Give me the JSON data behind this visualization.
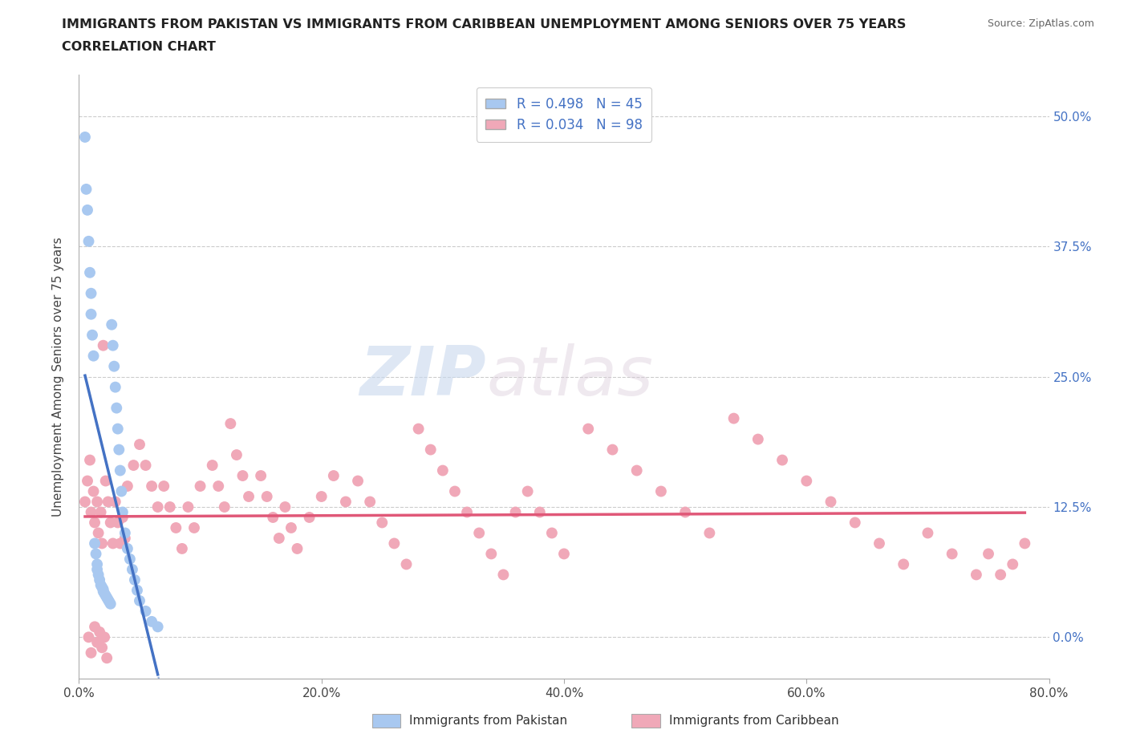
{
  "title_line1": "IMMIGRANTS FROM PAKISTAN VS IMMIGRANTS FROM CARIBBEAN UNEMPLOYMENT AMONG SENIORS OVER 75 YEARS",
  "title_line2": "CORRELATION CHART",
  "source": "Source: ZipAtlas.com",
  "ylabel": "Unemployment Among Seniors over 75 years",
  "xlim": [
    0.0,
    0.8
  ],
  "ylim": [
    -0.04,
    0.54
  ],
  "yticks": [
    0.0,
    0.125,
    0.25,
    0.375,
    0.5
  ],
  "ytick_labels_right": [
    "0.0%",
    "12.5%",
    "25.0%",
    "37.5%",
    "50.0%"
  ],
  "xticks": [
    0.0,
    0.2,
    0.4,
    0.6,
    0.8
  ],
  "xtick_labels": [
    "0.0%",
    "20.0%",
    "40.0%",
    "60.0%",
    "80.0%"
  ],
  "pakistan_color": "#a8c8f0",
  "caribbean_color": "#f0a8b8",
  "pakistan_line_color": "#4472c4",
  "caribbean_line_color": "#e05878",
  "pakistan_R": 0.498,
  "pakistan_N": 45,
  "caribbean_R": 0.034,
  "caribbean_N": 98,
  "legend_R_color": "#4472c4",
  "watermark_zip": "ZIP",
  "watermark_atlas": "atlas",
  "grid_color": "#cccccc",
  "pak_x": [
    0.005,
    0.006,
    0.007,
    0.008,
    0.009,
    0.01,
    0.01,
    0.011,
    0.012,
    0.013,
    0.014,
    0.015,
    0.015,
    0.016,
    0.017,
    0.018,
    0.019,
    0.02,
    0.02,
    0.021,
    0.022,
    0.023,
    0.024,
    0.025,
    0.026,
    0.027,
    0.028,
    0.029,
    0.03,
    0.031,
    0.032,
    0.033,
    0.034,
    0.035,
    0.036,
    0.038,
    0.04,
    0.042,
    0.044,
    0.046,
    0.048,
    0.05,
    0.055,
    0.06,
    0.065
  ],
  "pak_y": [
    0.48,
    0.43,
    0.41,
    0.38,
    0.35,
    0.33,
    0.31,
    0.29,
    0.27,
    0.09,
    0.08,
    0.07,
    0.065,
    0.06,
    0.055,
    0.05,
    0.048,
    0.046,
    0.044,
    0.042,
    0.04,
    0.038,
    0.036,
    0.034,
    0.032,
    0.3,
    0.28,
    0.26,
    0.24,
    0.22,
    0.2,
    0.18,
    0.16,
    0.14,
    0.12,
    0.1,
    0.085,
    0.075,
    0.065,
    0.055,
    0.045,
    0.035,
    0.025,
    0.015,
    0.01
  ],
  "car_x": [
    0.005,
    0.007,
    0.009,
    0.01,
    0.012,
    0.013,
    0.015,
    0.016,
    0.018,
    0.019,
    0.02,
    0.022,
    0.024,
    0.026,
    0.028,
    0.03,
    0.032,
    0.034,
    0.036,
    0.038,
    0.04,
    0.045,
    0.05,
    0.055,
    0.06,
    0.065,
    0.07,
    0.075,
    0.08,
    0.085,
    0.09,
    0.095,
    0.1,
    0.11,
    0.115,
    0.12,
    0.125,
    0.13,
    0.135,
    0.14,
    0.15,
    0.155,
    0.16,
    0.165,
    0.17,
    0.175,
    0.18,
    0.19,
    0.2,
    0.21,
    0.22,
    0.23,
    0.24,
    0.25,
    0.26,
    0.27,
    0.28,
    0.29,
    0.3,
    0.31,
    0.32,
    0.33,
    0.34,
    0.35,
    0.36,
    0.37,
    0.38,
    0.39,
    0.4,
    0.42,
    0.44,
    0.46,
    0.48,
    0.5,
    0.52,
    0.54,
    0.56,
    0.58,
    0.6,
    0.62,
    0.64,
    0.66,
    0.68,
    0.7,
    0.72,
    0.74,
    0.75,
    0.76,
    0.77,
    0.78,
    0.008,
    0.01,
    0.013,
    0.015,
    0.017,
    0.019,
    0.021,
    0.023
  ],
  "car_y": [
    0.13,
    0.15,
    0.17,
    0.12,
    0.14,
    0.11,
    0.13,
    0.1,
    0.12,
    0.09,
    0.28,
    0.15,
    0.13,
    0.11,
    0.09,
    0.13,
    0.11,
    0.09,
    0.115,
    0.095,
    0.145,
    0.165,
    0.185,
    0.165,
    0.145,
    0.125,
    0.145,
    0.125,
    0.105,
    0.085,
    0.125,
    0.105,
    0.145,
    0.165,
    0.145,
    0.125,
    0.205,
    0.175,
    0.155,
    0.135,
    0.155,
    0.135,
    0.115,
    0.095,
    0.125,
    0.105,
    0.085,
    0.115,
    0.135,
    0.155,
    0.13,
    0.15,
    0.13,
    0.11,
    0.09,
    0.07,
    0.2,
    0.18,
    0.16,
    0.14,
    0.12,
    0.1,
    0.08,
    0.06,
    0.12,
    0.14,
    0.12,
    0.1,
    0.08,
    0.2,
    0.18,
    0.16,
    0.14,
    0.12,
    0.1,
    0.21,
    0.19,
    0.17,
    0.15,
    0.13,
    0.11,
    0.09,
    0.07,
    0.1,
    0.08,
    0.06,
    0.08,
    0.06,
    0.07,
    0.09,
    0.0,
    -0.015,
    0.01,
    -0.005,
    0.005,
    -0.01,
    0.0,
    -0.02
  ]
}
